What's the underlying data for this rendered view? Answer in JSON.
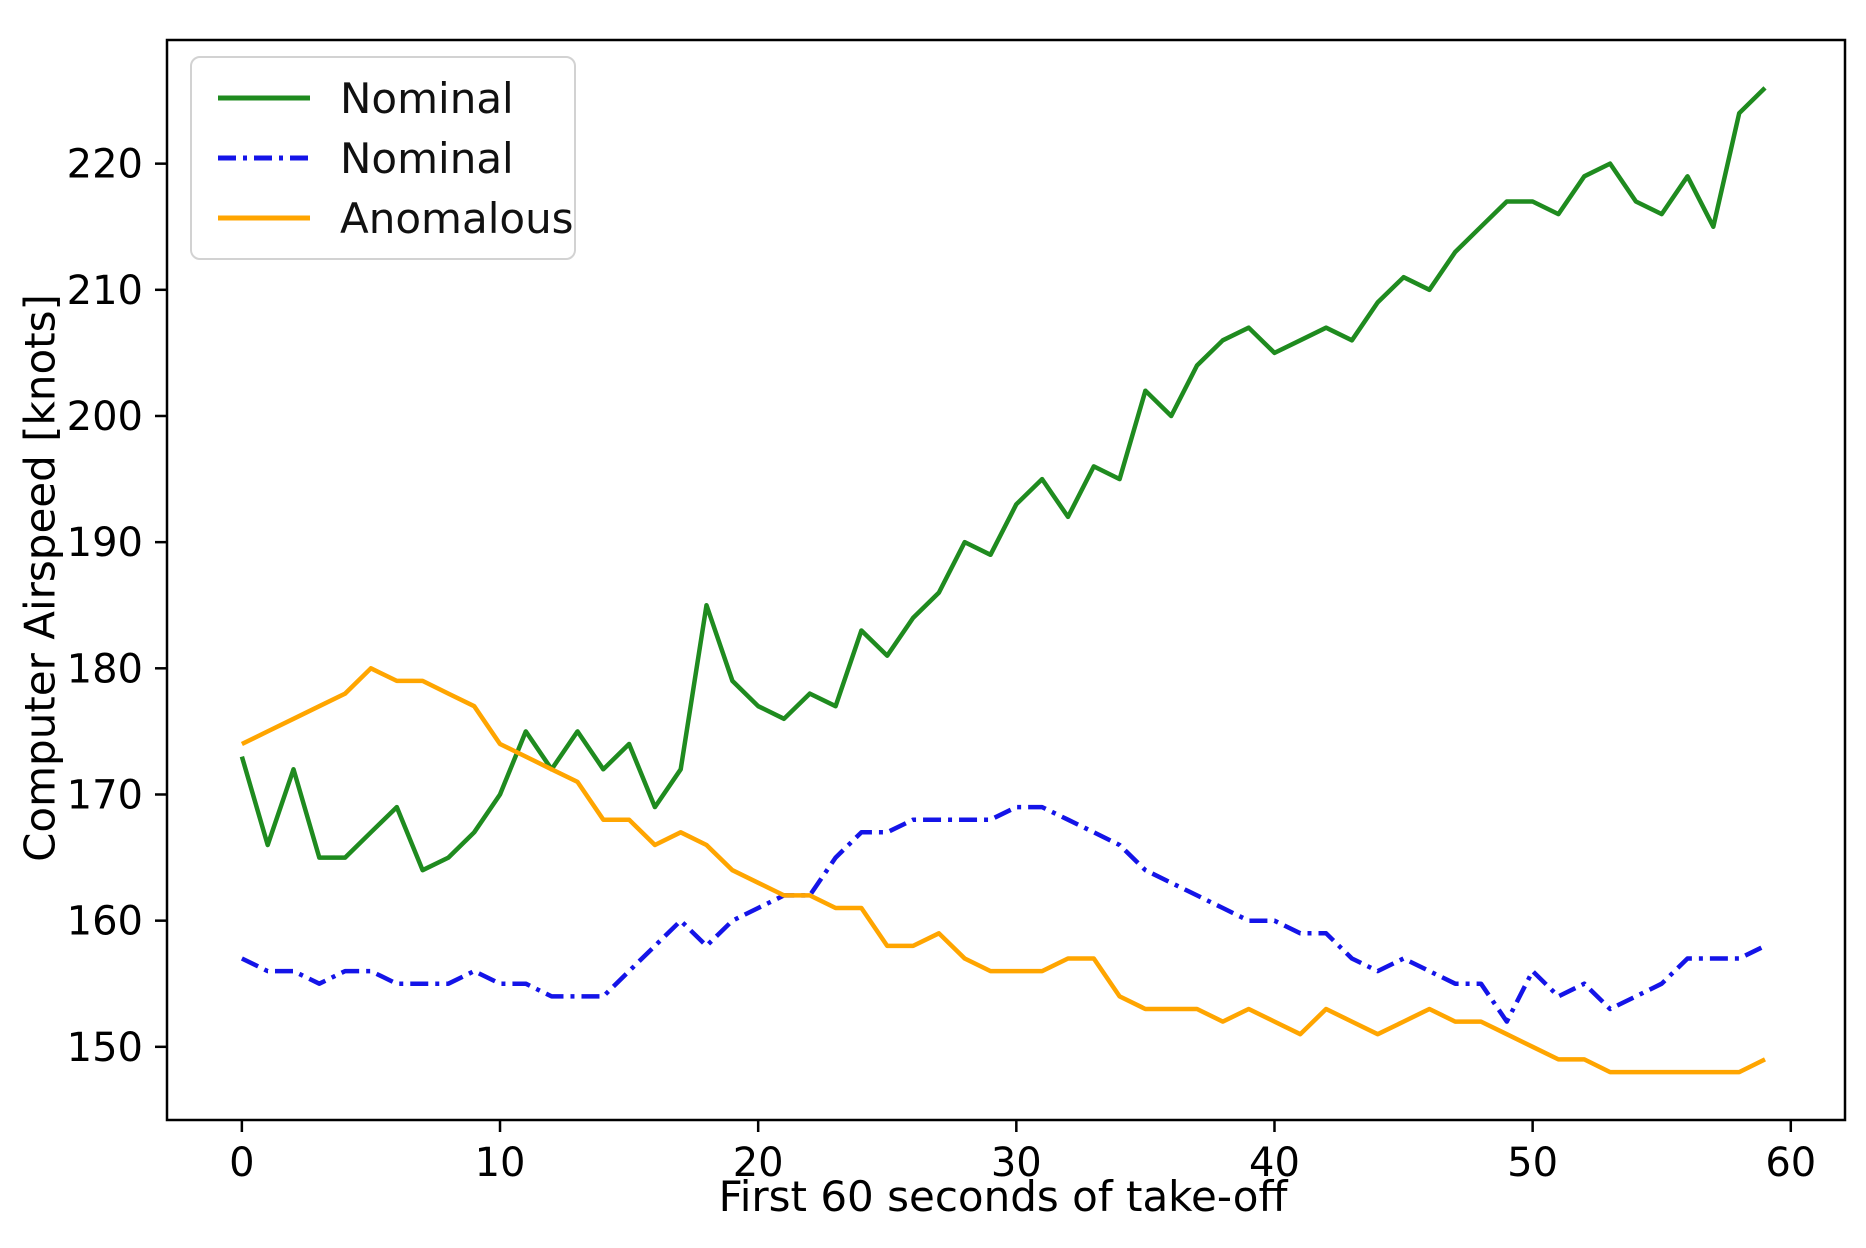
{
  "chart_data": {
    "type": "line",
    "title": "",
    "xlabel": "First 60 seconds of take-off",
    "ylabel": "Computer Airspeed [knots]",
    "x": [
      0,
      1,
      2,
      3,
      4,
      5,
      6,
      7,
      8,
      9,
      10,
      11,
      12,
      13,
      14,
      15,
      16,
      17,
      18,
      19,
      20,
      21,
      22,
      23,
      24,
      25,
      26,
      27,
      28,
      29,
      30,
      31,
      32,
      33,
      34,
      35,
      36,
      37,
      38,
      39,
      40,
      41,
      42,
      43,
      44,
      45,
      46,
      47,
      48,
      49,
      50,
      51,
      52,
      53,
      54,
      55,
      56,
      57,
      58,
      59
    ],
    "xlim": [
      -2.9,
      62.1
    ],
    "ylim": [
      144.2,
      229.8
    ],
    "xticks": [
      0,
      10,
      20,
      30,
      40,
      50,
      60
    ],
    "yticks": [
      150,
      160,
      170,
      180,
      190,
      200,
      210,
      220
    ],
    "grid": false,
    "legend_position": "upper left",
    "series": [
      {
        "name": "Nominal",
        "color": "#1f8b1f",
        "style": "solid",
        "values": [
          173,
          166,
          172,
          165,
          165,
          167,
          169,
          164,
          165,
          167,
          170,
          175,
          172,
          175,
          172,
          174,
          169,
          172,
          185,
          179,
          177,
          176,
          178,
          177,
          183,
          181,
          184,
          186,
          190,
          189,
          193,
          195,
          192,
          196,
          195,
          202,
          200,
          204,
          206,
          207,
          205,
          206,
          207,
          206,
          209,
          211,
          210,
          213,
          215,
          217,
          217,
          216,
          219,
          220,
          217,
          216,
          219,
          215,
          224,
          226
        ]
      },
      {
        "name": "Nominal",
        "color": "#1414e8",
        "style": "dashdot",
        "values": [
          157,
          156,
          156,
          155,
          156,
          156,
          155,
          155,
          155,
          156,
          155,
          155,
          154,
          154,
          154,
          156,
          158,
          160,
          158,
          160,
          161,
          162,
          162,
          165,
          167,
          167,
          168,
          168,
          168,
          168,
          169,
          169,
          168,
          167,
          166,
          164,
          163,
          162,
          161,
          160,
          160,
          159,
          159,
          157,
          156,
          157,
          156,
          155,
          155,
          152,
          156,
          154,
          155,
          153,
          154,
          155,
          157,
          157,
          157,
          158
        ]
      },
      {
        "name": "Anomalous",
        "color": "#ffa500",
        "style": "solid",
        "values": [
          174,
          175,
          176,
          177,
          178,
          180,
          179,
          179,
          178,
          177,
          174,
          173,
          172,
          171,
          168,
          168,
          166,
          167,
          166,
          164,
          163,
          162,
          162,
          161,
          161,
          158,
          158,
          159,
          157,
          156,
          156,
          156,
          157,
          157,
          154,
          153,
          153,
          153,
          152,
          153,
          152,
          151,
          153,
          152,
          151,
          152,
          153,
          152,
          152,
          151,
          150,
          149,
          149,
          148,
          148,
          148,
          148,
          148,
          148,
          149
        ]
      }
    ]
  }
}
